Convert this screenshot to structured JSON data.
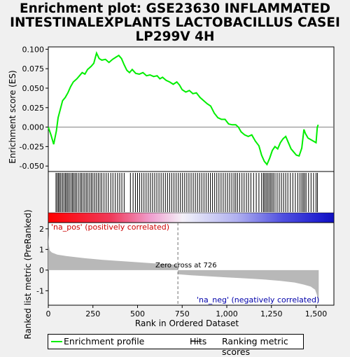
{
  "title_lines": [
    "Enrichment plot: GSE23630 INFLAMMATED",
    "INTESTINALEXPLANTS LACTOBACILLUS CASEI",
    "LP299V 4H"
  ],
  "chart_data": {
    "type": "line",
    "es_panel": {
      "ylabel": "Enrichment score (ES)",
      "ylim": [
        -0.057,
        0.103
      ],
      "yticks": [
        -0.05,
        -0.025,
        0.0,
        0.025,
        0.05,
        0.075,
        0.1
      ],
      "ytick_labels": [
        "-0.050",
        "-0.025",
        "0.000",
        "0.025",
        "0.050",
        "0.075",
        "0.100"
      ],
      "series": [
        {
          "name": "Enrichment profile",
          "color": "#00ee00",
          "points": [
            [
              0,
              0.0
            ],
            [
              15,
              -0.01
            ],
            [
              30,
              -0.022
            ],
            [
              45,
              -0.005
            ],
            [
              55,
              0.012
            ],
            [
              70,
              0.025
            ],
            [
              80,
              0.034
            ],
            [
              95,
              0.038
            ],
            [
              110,
              0.044
            ],
            [
              125,
              0.052
            ],
            [
              140,
              0.058
            ],
            [
              160,
              0.062
            ],
            [
              175,
              0.066
            ],
            [
              190,
              0.07
            ],
            [
              205,
              0.068
            ],
            [
              220,
              0.074
            ],
            [
              240,
              0.078
            ],
            [
              255,
              0.082
            ],
            [
              270,
              0.095
            ],
            [
              285,
              0.088
            ],
            [
              300,
              0.086
            ],
            [
              320,
              0.087
            ],
            [
              340,
              0.083
            ],
            [
              360,
              0.087
            ],
            [
              380,
              0.09
            ],
            [
              395,
              0.092
            ],
            [
              410,
              0.088
            ],
            [
              425,
              0.08
            ],
            [
              440,
              0.073
            ],
            [
              455,
              0.07
            ],
            [
              470,
              0.074
            ],
            [
              490,
              0.069
            ],
            [
              510,
              0.068
            ],
            [
              530,
              0.07
            ],
            [
              550,
              0.066
            ],
            [
              570,
              0.067
            ],
            [
              590,
              0.065
            ],
            [
              610,
              0.066
            ],
            [
              625,
              0.062
            ],
            [
              640,
              0.064
            ],
            [
              660,
              0.06
            ],
            [
              680,
              0.058
            ],
            [
              700,
              0.055
            ],
            [
              720,
              0.058
            ],
            [
              735,
              0.054
            ],
            [
              750,
              0.048
            ],
            [
              770,
              0.045
            ],
            [
              790,
              0.047
            ],
            [
              810,
              0.043
            ],
            [
              830,
              0.044
            ],
            [
              850,
              0.038
            ],
            [
              870,
              0.034
            ],
            [
              890,
              0.03
            ],
            [
              910,
              0.027
            ],
            [
              930,
              0.018
            ],
            [
              950,
              0.012
            ],
            [
              970,
              0.01
            ],
            [
              990,
              0.01
            ],
            [
              1010,
              0.004
            ],
            [
              1030,
              0.003
            ],
            [
              1050,
              0.003
            ],
            [
              1065,
              0.0
            ],
            [
              1080,
              -0.006
            ],
            [
              1100,
              -0.01
            ],
            [
              1120,
              -0.012
            ],
            [
              1140,
              -0.01
            ],
            [
              1160,
              -0.018
            ],
            [
              1180,
              -0.024
            ],
            [
              1195,
              -0.036
            ],
            [
              1210,
              -0.044
            ],
            [
              1225,
              -0.048
            ],
            [
              1240,
              -0.04
            ],
            [
              1255,
              -0.03
            ],
            [
              1270,
              -0.025
            ],
            [
              1285,
              -0.028
            ],
            [
              1300,
              -0.02
            ],
            [
              1315,
              -0.015
            ],
            [
              1330,
              -0.012
            ],
            [
              1345,
              -0.02
            ],
            [
              1360,
              -0.028
            ],
            [
              1375,
              -0.032
            ],
            [
              1390,
              -0.036
            ],
            [
              1405,
              -0.037
            ],
            [
              1420,
              -0.027
            ],
            [
              1432,
              -0.003
            ],
            [
              1440,
              -0.008
            ],
            [
              1455,
              -0.014
            ],
            [
              1470,
              -0.016
            ],
            [
              1485,
              -0.018
            ],
            [
              1500,
              -0.02
            ],
            [
              1507,
              0.0
            ],
            [
              1512,
              0.003
            ]
          ]
        }
      ]
    },
    "hits_panel": {
      "hit_ranks": [
        43,
        50,
        57,
        64,
        71,
        80,
        88,
        96,
        103,
        110,
        118,
        127,
        135,
        142,
        150,
        158,
        168,
        178,
        186,
        195,
        204,
        213,
        222,
        232,
        241,
        250,
        260,
        270,
        280,
        290,
        300,
        312,
        324,
        336,
        350,
        362,
        375,
        388,
        400,
        412,
        425,
        460,
        475,
        488,
        500,
        512,
        524,
        536,
        548,
        560,
        572,
        584,
        596,
        608,
        620,
        632,
        644,
        656,
        668,
        680,
        692,
        704,
        716,
        728,
        740,
        752,
        764,
        776,
        788,
        800,
        812,
        824,
        836,
        848,
        860,
        872,
        884,
        896,
        908,
        920,
        932,
        944,
        956,
        968,
        980,
        992,
        1004,
        1016,
        1028,
        1040,
        1050,
        1060,
        1072,
        1085,
        1097,
        1110,
        1122,
        1135,
        1150,
        1165,
        1180,
        1195,
        1205,
        1212,
        1220,
        1228,
        1236,
        1244,
        1252,
        1260,
        1270,
        1282,
        1294,
        1306,
        1318,
        1330,
        1342,
        1356,
        1370,
        1384,
        1398,
        1410,
        1420,
        1428,
        1436,
        1444,
        1458,
        1472,
        1486,
        1500,
        1508
      ]
    },
    "rank_panel": {
      "ylabel": "Ranked list metric (PreRanked)",
      "xlabel": "Rank in Ordered Dataset",
      "xlim": [
        0,
        1600
      ],
      "ylim": [
        -1.7,
        2.3
      ],
      "xticks": [
        0,
        250,
        500,
        750,
        1000,
        1250,
        1500
      ],
      "xtick_labels": [
        "0",
        "250",
        "500",
        "750",
        "1,000",
        "1,250",
        "1,500"
      ],
      "yticks": [
        -1,
        0,
        1,
        2
      ],
      "ytick_labels": [
        "-1",
        "0",
        "1",
        "2"
      ],
      "zero_cross": 726,
      "n_genes": 1515,
      "metric_points": [
        [
          0,
          1.7
        ],
        [
          3,
          1.2
        ],
        [
          8,
          0.95
        ],
        [
          20,
          0.85
        ],
        [
          50,
          0.75
        ],
        [
          100,
          0.68
        ],
        [
          200,
          0.58
        ],
        [
          300,
          0.5
        ],
        [
          400,
          0.44
        ],
        [
          500,
          0.38
        ],
        [
          600,
          0.32
        ],
        [
          700,
          0.27
        ],
        [
          725,
          0.25
        ],
        [
          726,
          -0.2
        ],
        [
          800,
          -0.25
        ],
        [
          900,
          -0.3
        ],
        [
          1000,
          -0.35
        ],
        [
          1100,
          -0.4
        ],
        [
          1200,
          -0.45
        ],
        [
          1300,
          -0.52
        ],
        [
          1380,
          -0.6
        ],
        [
          1430,
          -0.7
        ],
        [
          1470,
          -0.8
        ],
        [
          1495,
          -0.95
        ],
        [
          1505,
          -1.2
        ],
        [
          1512,
          -1.55
        ],
        [
          1515,
          -1.65
        ]
      ],
      "annotations": {
        "pos": "'na_pos' (positively correlated)",
        "neg": "'na_neg' (negatively correlated)",
        "zero": "Zero cross at 726"
      }
    },
    "legend": [
      {
        "label": "Enrichment profile",
        "color": "#00ee00"
      },
      {
        "label": "Hits",
        "color": "#000000"
      },
      {
        "label": "Ranking metric scores",
        "color": "#c0c0c0"
      }
    ]
  }
}
